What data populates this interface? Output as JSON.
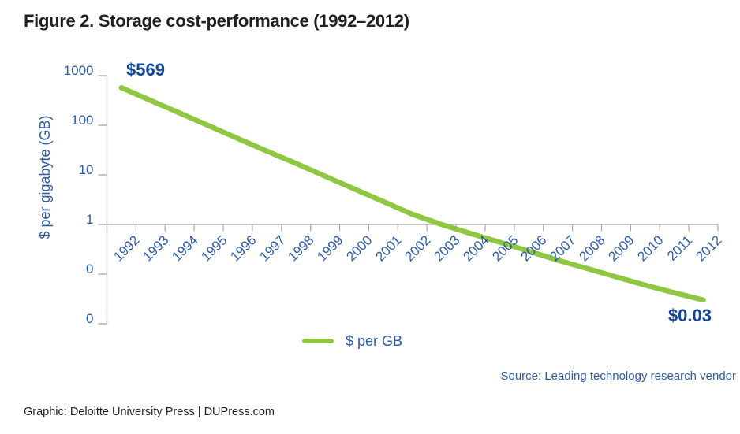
{
  "title": "Figure 2. Storage cost-performance (1992–2012)",
  "source": "Source: Leading technology research vendor",
  "footer": "Graphic: Deloitte University Press  |  DUPress.com",
  "colors": {
    "line_green": "#8fc642",
    "axis_text_blue": "#2d5aa6",
    "annotation_blue": "#10469b",
    "axis_gray": "#a6a6a6",
    "text_dark": "#231f20"
  },
  "chart_data": {
    "type": "line",
    "title": "Figure 2. Storage cost-performance (1992–2012)",
    "xlabel": "",
    "ylabel": "$ per gigabyte (GB)",
    "y_scale": "log",
    "ylim": [
      0.01,
      1000
    ],
    "y_tick_labels": [
      "1000",
      "100",
      "10",
      "1",
      "0",
      "0"
    ],
    "grid": false,
    "legend_position": "bottom-center",
    "x": [
      1992,
      1993,
      1994,
      1995,
      1996,
      1997,
      1998,
      1999,
      2000,
      2001,
      2002,
      2003,
      2004,
      2005,
      2006,
      2007,
      2008,
      2009,
      2010,
      2011,
      2012
    ],
    "series": [
      {
        "name": "$ per GB",
        "color": "#8fc642",
        "values": [
          569,
          316,
          176,
          98,
          54,
          30,
          17,
          9.4,
          5.2,
          2.9,
          1.6,
          1.0,
          0.66,
          0.44,
          0.29,
          0.19,
          0.13,
          0.088,
          0.06,
          0.042,
          0.03
        ]
      }
    ],
    "labeled_points": [
      {
        "x": 1992,
        "value": 569,
        "label": "$569"
      },
      {
        "x": 2012,
        "value": 0.03,
        "label": "$0.03"
      }
    ],
    "annotations": {
      "start": {
        "text": "$569"
      },
      "end": {
        "text": "$0.03"
      }
    }
  }
}
